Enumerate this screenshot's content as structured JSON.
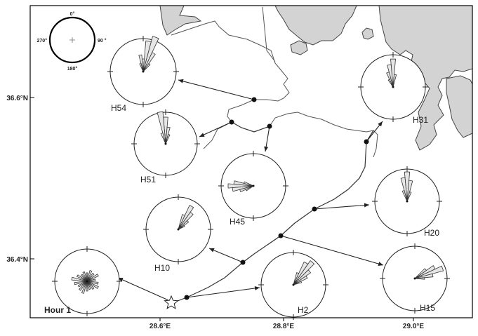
{
  "map": {
    "hour_label": "Hour 1",
    "lat_ticks": [
      "36.6°N",
      "36.4°N"
    ],
    "lon_ticks": [
      "28.6°E",
      "28.8°E",
      "29.0°E"
    ]
  },
  "compass_key": {
    "north": "0°",
    "east": "90 °",
    "south": "180°",
    "west": "270°"
  },
  "stations": [
    {
      "id": "H54",
      "label": "H54"
    },
    {
      "id": "H51",
      "label": "H51"
    },
    {
      "id": "H45",
      "label": "H45"
    },
    {
      "id": "H10",
      "label": "H10"
    },
    {
      "id": "H31",
      "label": "H31"
    },
    {
      "id": "H20",
      "label": "H20"
    },
    {
      "id": "H15",
      "label": "H15"
    },
    {
      "id": "H2",
      "label": "H2"
    }
  ],
  "release_point": {
    "symbol": "star"
  },
  "colors": {
    "land": "#d3d3d3",
    "rose_fill": "#e6e6e6",
    "line": "#333333",
    "frame": "#000000"
  }
}
